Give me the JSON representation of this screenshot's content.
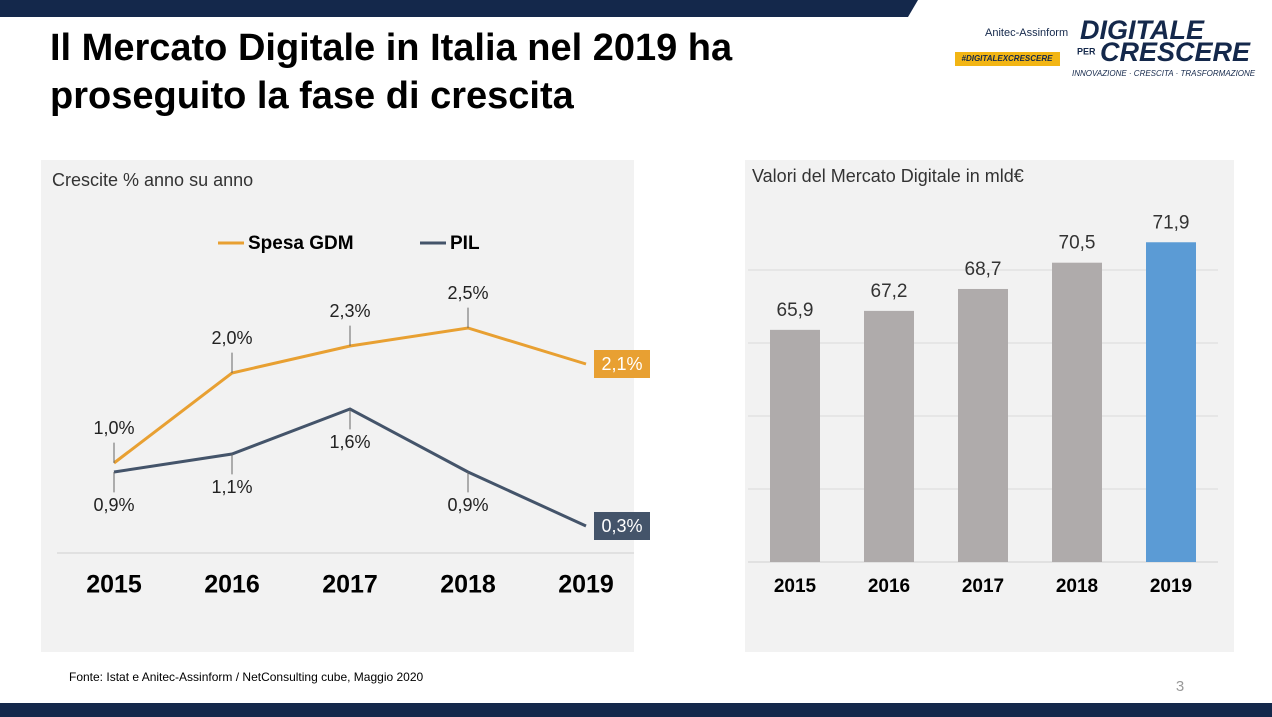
{
  "title": "Il Mercato Digitale in Italia nel 2019 ha proseguito la fase di crescita",
  "logos": {
    "anitec": "Anitec-Assinform",
    "hashtag": "#DIGITALEXCRESCERE",
    "digitale": "DIGITALE",
    "per": "PER",
    "crescere": "CRESCERE",
    "tagline": "INNOVAZIONE · CRESCITA · TRASFORMAZIONE"
  },
  "source": "Fonte: Istat e Anitec-Assinform / NetConsulting cube, Maggio  2020",
  "page_number": "3",
  "chart_data": [
    {
      "type": "line",
      "subtitle": "Crescite % anno su anno",
      "categories": [
        "2015",
        "2016",
        "2017",
        "2018",
        "2019"
      ],
      "ylim": [
        0,
        3
      ],
      "series": [
        {
          "name": "Spesa GDM",
          "color": "#e8a032",
          "values": [
            1.0,
            2.0,
            2.3,
            2.5,
            2.1
          ],
          "value_labels": [
            "1,0%",
            "2,0%",
            "2,3%",
            "2,5%",
            "2,1%"
          ]
        },
        {
          "name": "PIL",
          "color": "#44546a",
          "values": [
            0.9,
            1.1,
            1.6,
            0.9,
            0.3
          ],
          "value_labels": [
            "0,9%",
            "1,1%",
            "1,6%",
            "0,9%",
            "0,3%"
          ]
        }
      ]
    },
    {
      "type": "bar",
      "subtitle": "Valori del Mercato Digitale in mld€",
      "categories": [
        "2015",
        "2016",
        "2017",
        "2018",
        "2019"
      ],
      "values": [
        65.9,
        67.2,
        68.7,
        70.5,
        71.9
      ],
      "value_labels": [
        "65,9",
        "67,2",
        "68,7",
        "70,5",
        "71,9"
      ],
      "colors": [
        "#afabab",
        "#afabab",
        "#afabab",
        "#afabab",
        "#5b9bd5"
      ],
      "ylim": [
        50,
        75
      ],
      "yticks": [
        55,
        60,
        65,
        70
      ],
      "grid": true
    }
  ]
}
